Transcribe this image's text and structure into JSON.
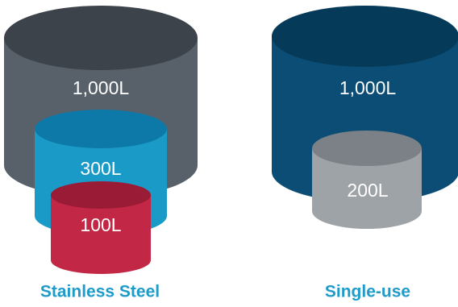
{
  "groups": [
    {
      "label": "Stainless Steel",
      "label_color": "#1f9bc9",
      "vessels": [
        {
          "volume": "1,000L",
          "color": "#58606a"
        },
        {
          "volume": "300L",
          "color": "#1a9bc7"
        },
        {
          "volume": "100L",
          "color": "#c22745"
        }
      ]
    },
    {
      "label": "Single-use",
      "label_color": "#1f9bc9",
      "vessels": [
        {
          "volume": "1,000L",
          "color": "#0b4d74"
        },
        {
          "volume": "200L",
          "color": "#9ea3a8"
        }
      ]
    }
  ]
}
